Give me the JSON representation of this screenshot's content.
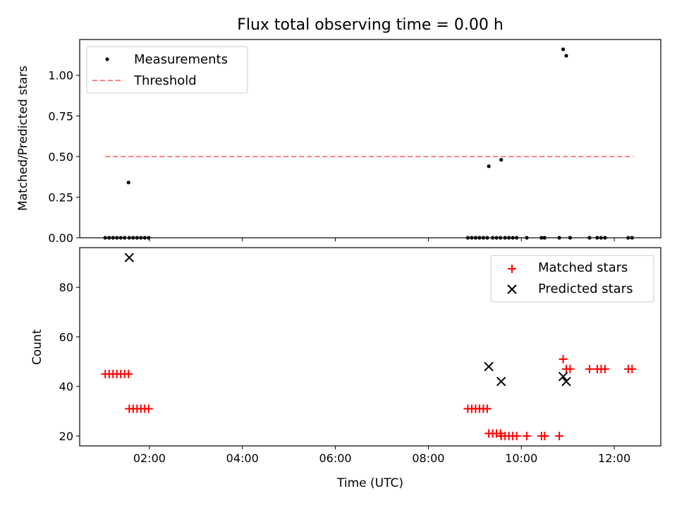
{
  "colors": {
    "measurements": "#000000",
    "threshold": "#ff7f7f",
    "matched": "#ff0000",
    "predicted": "#000000",
    "axes": "#000000",
    "background": "#ffffff"
  },
  "chart_data": [
    {
      "type": "scatter",
      "title": "Flux total observing time = 0.00 h",
      "xlabel": "",
      "ylabel": "Matched/Predicted stars",
      "xlim": [
        "00:30",
        "13:00"
      ],
      "ylim": [
        0,
        1.22
      ],
      "yticks": [
        0.0,
        0.25,
        0.5,
        0.75,
        1.0
      ],
      "ytick_labels": [
        "0.00",
        "0.25",
        "0.50",
        "0.75",
        "1.00"
      ],
      "xticks": [
        "02:00",
        "04:00",
        "06:00",
        "08:00",
        "10:00",
        "12:00"
      ],
      "show_xtick_labels": false,
      "grid": false,
      "legend": {
        "placement": "upper left",
        "entries": [
          {
            "label": "Measurements",
            "marker": "dot",
            "color": "#000000"
          },
          {
            "label": "Threshold",
            "marker": "dashed-line",
            "color": "#ff7f7f"
          }
        ]
      },
      "series": [
        {
          "name": "Measurements",
          "kind": "scatter",
          "marker": "dot",
          "color": "#000000",
          "x": [
            "01:03",
            "01:08",
            "01:13",
            "01:18",
            "01:23",
            "01:28",
            "01:33",
            "01:34",
            "01:39",
            "01:44",
            "01:49",
            "01:54",
            "01:59",
            "08:51",
            "08:56",
            "09:01",
            "09:06",
            "09:11",
            "09:16",
            "09:18",
            "09:23",
            "09:28",
            "09:33",
            "09:34",
            "09:39",
            "09:44",
            "09:49",
            "09:54",
            "10:07",
            "10:26",
            "10:30",
            "10:49",
            "10:54",
            "10:58",
            "11:03",
            "11:28",
            "11:38",
            "11:43",
            "11:48",
            "12:18",
            "12:23"
          ],
          "y": [
            0,
            0,
            0,
            0,
            0,
            0,
            0.34,
            0,
            0,
            0,
            0,
            0,
            0,
            0,
            0,
            0,
            0,
            0,
            0,
            0.44,
            0,
            0,
            0,
            0.48,
            0,
            0,
            0,
            0,
            0,
            0,
            0,
            0,
            1.16,
            1.12,
            0,
            0,
            0,
            0,
            0,
            0,
            0
          ]
        },
        {
          "name": "Threshold",
          "kind": "line",
          "style": "dashed",
          "color": "#ff7f7f",
          "x": [
            "01:03",
            "12:25"
          ],
          "y": [
            0.5,
            0.5
          ]
        }
      ]
    },
    {
      "type": "scatter",
      "title": "",
      "xlabel": "Time (UTC)",
      "ylabel": "Count",
      "xlim": [
        "00:30",
        "13:00"
      ],
      "ylim": [
        16,
        96
      ],
      "yticks": [
        20,
        40,
        60,
        80
      ],
      "ytick_labels": [
        "20",
        "40",
        "60",
        "80"
      ],
      "xticks": [
        "02:00",
        "04:00",
        "06:00",
        "08:00",
        "10:00",
        "12:00"
      ],
      "xtick_labels": [
        "02:00",
        "04:00",
        "06:00",
        "08:00",
        "10:00",
        "12:00"
      ],
      "grid": false,
      "legend": {
        "placement": "upper right",
        "entries": [
          {
            "label": "Matched stars",
            "marker": "plus",
            "color": "#ff0000"
          },
          {
            "label": "Predicted stars",
            "marker": "x",
            "color": "#000000"
          }
        ]
      },
      "series": [
        {
          "name": "Matched stars",
          "marker": "plus",
          "color": "#ff0000",
          "x": [
            "01:03",
            "01:08",
            "01:13",
            "01:18",
            "01:23",
            "01:28",
            "01:33",
            "01:34",
            "01:39",
            "01:44",
            "01:49",
            "01:54",
            "01:59",
            "08:51",
            "08:56",
            "09:01",
            "09:06",
            "09:11",
            "09:16",
            "09:18",
            "09:23",
            "09:28",
            "09:33",
            "09:34",
            "09:39",
            "09:44",
            "09:49",
            "09:54",
            "10:07",
            "10:26",
            "10:30",
            "10:49",
            "10:54",
            "10:58",
            "11:03",
            "11:28",
            "11:38",
            "11:43",
            "11:48",
            "12:18",
            "12:23"
          ],
          "y": [
            45,
            45,
            45,
            45,
            45,
            45,
            45,
            31,
            31,
            31,
            31,
            31,
            31,
            31,
            31,
            31,
            31,
            31,
            31,
            21,
            21,
            21,
            21,
            20,
            20,
            20,
            20,
            20,
            20,
            20,
            20,
            20,
            51,
            47,
            47,
            47,
            47,
            47,
            47,
            47,
            47
          ]
        },
        {
          "name": "Predicted stars",
          "marker": "x",
          "color": "#000000",
          "x": [
            "01:34",
            "09:18",
            "09:34",
            "10:54",
            "10:58"
          ],
          "y": [
            92,
            48,
            42,
            44,
            42
          ]
        }
      ]
    }
  ]
}
